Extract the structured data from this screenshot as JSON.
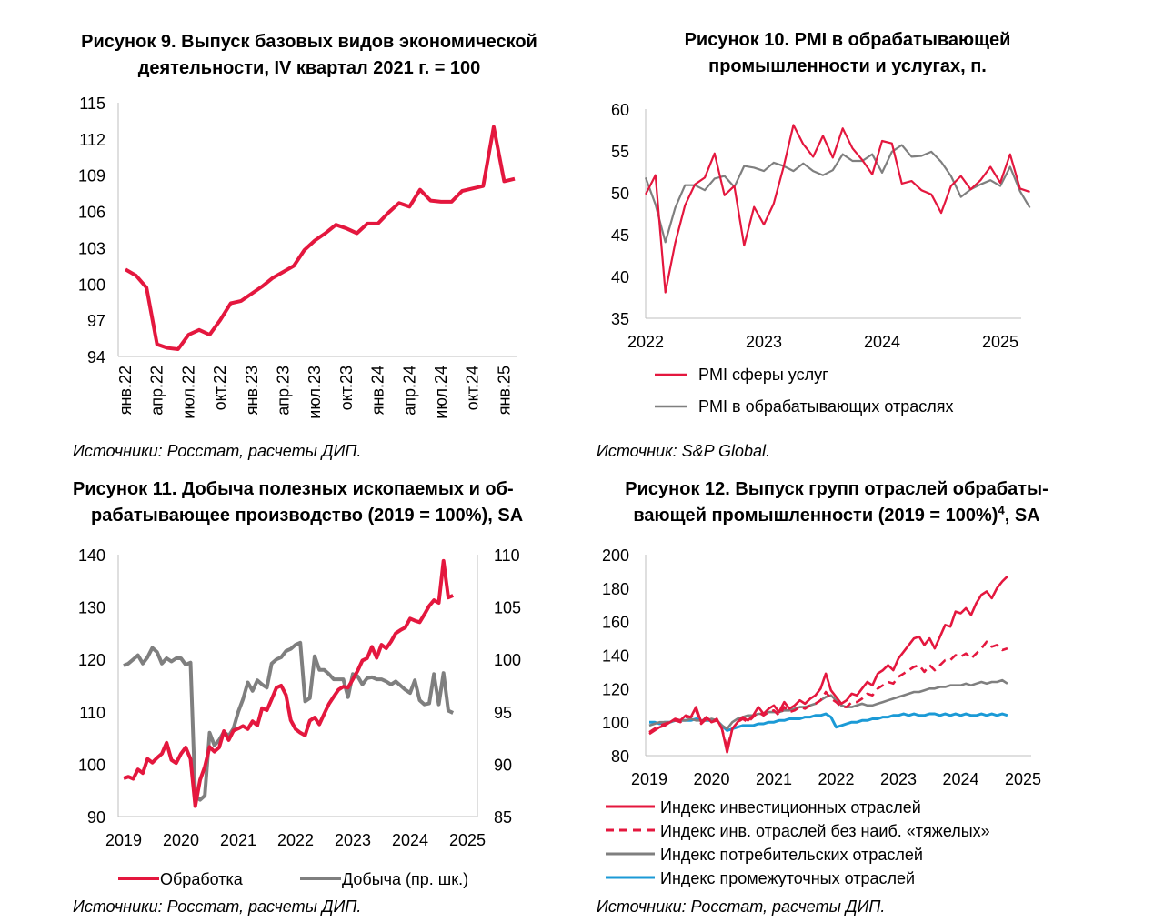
{
  "colors": {
    "red": "#e4173e",
    "gray": "#7f7f7f",
    "blue": "#1b9ad6",
    "axis": "#bfbfbf"
  },
  "chart_data": [
    {
      "id": "fig9",
      "type": "line",
      "title_lines": [
        "Рисунок 9. Выпуск базовых видов экономической",
        "деятельности, IV квартал 2021 г. = 100"
      ],
      "source": "Источники: Росстат, расчеты ДИП.",
      "ylim": [
        94,
        115
      ],
      "yticks": [
        94,
        97,
        100,
        103,
        106,
        109,
        112,
        115
      ],
      "xticks": [
        "янв.22",
        "апр.22",
        "июл.22",
        "окт.22",
        "янв.23",
        "апр.23",
        "июл.23",
        "окт.23",
        "янв.24",
        "апр.24",
        "июл.24",
        "окт.24",
        "янв.25"
      ],
      "series": [
        {
          "color": "red",
          "values": [
            101.2,
            100.7,
            99.7,
            95.0,
            94.7,
            94.6,
            95.8,
            96.2,
            95.8,
            97.0,
            98.4,
            98.6,
            99.2,
            99.8,
            100.5,
            101.0,
            101.5,
            102.8,
            103.6,
            104.2,
            104.9,
            104.6,
            104.2,
            105.0,
            105.0,
            105.9,
            106.7,
            106.4,
            107.8,
            106.9,
            106.8,
            106.8,
            107.7,
            107.9,
            108.1,
            113.0,
            108.5,
            108.7
          ]
        }
      ]
    },
    {
      "id": "fig10",
      "type": "line",
      "title_lines": [
        "Рисунок 10. PMI в обрабатывающей",
        "промышленности и услугах, п."
      ],
      "source": "Источник: S&P Global.",
      "ylim": [
        35,
        60
      ],
      "yticks": [
        35,
        40,
        45,
        50,
        55,
        60
      ],
      "x_start": 2022.0,
      "x_step": 0.08333,
      "xticks": [
        2022,
        2023,
        2024,
        2025
      ],
      "series": [
        {
          "name": "PMI сферы услуг",
          "color": "red",
          "values": [
            49.8,
            52.1,
            38.1,
            44.0,
            48.5,
            51.0,
            51.8,
            54.7,
            49.7,
            50.8,
            43.7,
            48.3,
            46.2,
            48.7,
            53.1,
            58.1,
            55.8,
            54.3,
            56.8,
            54.2,
            57.7,
            55.3,
            53.9,
            52.2,
            56.2,
            55.9,
            51.1,
            51.4,
            50.3,
            49.8,
            47.6,
            50.8,
            52.0,
            50.4,
            51.5,
            53.1,
            51.2,
            54.6,
            50.5,
            50.1
          ]
        },
        {
          "name": "PMI в обрабатывающих отраслях",
          "color": "gray",
          "values": [
            51.8,
            48.6,
            44.1,
            48.2,
            50.9,
            50.9,
            50.3,
            51.7,
            52.0,
            50.7,
            53.2,
            53.0,
            52.6,
            53.6,
            53.2,
            52.6,
            53.5,
            52.6,
            52.1,
            52.7,
            54.6,
            53.8,
            53.8,
            54.6,
            52.4,
            54.9,
            55.7,
            54.3,
            54.4,
            54.9,
            53.7,
            52.0,
            49.5,
            50.4,
            51.0,
            51.5,
            50.8,
            53.1,
            50.2,
            48.2
          ]
        }
      ]
    },
    {
      "id": "fig11",
      "type": "line",
      "title_lines": [
        "Рисунок 11. Добыча полезных ископаемых и об-",
        "рабатывающее производство (2019 = 100%), SA"
      ],
      "source": "Источники: Росстат, расчеты ДИП.",
      "ylim": [
        90,
        140
      ],
      "yticks": [
        90,
        100,
        110,
        120,
        130,
        140
      ],
      "y2lim": [
        85,
        110
      ],
      "y2ticks": [
        85,
        90,
        95,
        100,
        105,
        110
      ],
      "x_start": 2019.0,
      "x_step": 0.08333,
      "xticks": [
        2019,
        2020,
        2021,
        2022,
        2023,
        2024,
        2025
      ],
      "series": [
        {
          "name": "Обработка",
          "color": "red",
          "axis": "left",
          "values": [
            97.3,
            97.6,
            97.2,
            99.0,
            98.3,
            101.0,
            100.3,
            101.2,
            102.0,
            104.1,
            100.8,
            100.2,
            102.0,
            103.2,
            101.0,
            92.0,
            97.0,
            99.5,
            103.3,
            102.4,
            103.2,
            106.3,
            104.6,
            106.4,
            106.8,
            107.3,
            106.7,
            108.2,
            107.4,
            110.7,
            110.3,
            112.4,
            114.6,
            115.0,
            113.2,
            108.4,
            106.7,
            106.0,
            105.5,
            108.3,
            108.9,
            107.6,
            109.6,
            111.5,
            112.9,
            114.2,
            114.8,
            114.6,
            116.2,
            117.8,
            119.8,
            120.2,
            122.4,
            120.3,
            122.8,
            122.1,
            123.4,
            125.0,
            125.6,
            126.1,
            127.8,
            127.4,
            127.1,
            128.6,
            130.2,
            131.3,
            130.8,
            138.8,
            131.8,
            132.2
          ]
        },
        {
          "name": "Добыча (пр. шк.)",
          "color": "gray",
          "axis": "right",
          "values": [
            99.4,
            99.6,
            100.0,
            100.4,
            99.6,
            100.2,
            101.1,
            100.7,
            99.6,
            100.1,
            99.8,
            100.1,
            100.1,
            99.5,
            99.7,
            87.0,
            86.6,
            87.0,
            93.0,
            91.8,
            92.3,
            93.1,
            92.7,
            93.4,
            95.0,
            96.2,
            97.8,
            97.0,
            98.0,
            97.6,
            97.3,
            99.6,
            100.0,
            100.2,
            100.8,
            101.0,
            101.4,
            101.6,
            96.0,
            96.3,
            100.3,
            99.0,
            99.0,
            98.6,
            98.1,
            98.1,
            98.1,
            96.4,
            98.6,
            98.4,
            97.6,
            98.2,
            98.3,
            98.1,
            98.1,
            97.9,
            97.6,
            97.9,
            97.5,
            97.1,
            96.8,
            98.0,
            96.1,
            95.7,
            95.8,
            98.6,
            95.7,
            98.7,
            95.1,
            94.9
          ]
        }
      ],
      "legend": [
        "Обработка",
        "Добыча (пр. шк.)"
      ]
    },
    {
      "id": "fig12",
      "type": "line",
      "title_lines": [
        "Рисунок 12. Выпуск групп отраслей обрабаты-",
        "вающей промышленности (2019 = 100%)"
      ],
      "title_sup": "4",
      "title_tail": ", SA",
      "source": "Источники: Росстат, расчеты ДИП.",
      "ylim": [
        80,
        200
      ],
      "yticks": [
        80,
        100,
        120,
        140,
        160,
        180,
        200
      ],
      "x_start": 2019.0,
      "x_step": 0.08333,
      "xticks": [
        2019,
        2020,
        2021,
        2022,
        2023,
        2024,
        2025
      ],
      "series": [
        {
          "name": "Индекс инвестиционных отраслей",
          "color": "red",
          "dash": false,
          "values": [
            93.0,
            95.0,
            97.0,
            98.0,
            100.0,
            102.0,
            101.0,
            104.0,
            103.0,
            109.0,
            100.0,
            103.0,
            100.0,
            102.0,
            96.0,
            82.0,
            96.0,
            100.0,
            103.0,
            101.0,
            104.0,
            109.0,
            105.0,
            108.0,
            110.0,
            106.0,
            112.0,
            108.0,
            110.0,
            113.0,
            111.0,
            114.0,
            116.0,
            120.0,
            129.0,
            119.0,
            115.0,
            111.0,
            113.0,
            117.0,
            116.0,
            120.0,
            124.0,
            122.0,
            129.0,
            131.0,
            134.0,
            131.0,
            138.0,
            142.0,
            146.0,
            150.0,
            151.0,
            146.0,
            150.0,
            144.0,
            151.0,
            158.0,
            157.0,
            166.0,
            165.0,
            168.0,
            164.0,
            171.0,
            176.0,
            178.0,
            174.0,
            180.0,
            184.0,
            187.0
          ]
        },
        {
          "name": "Индекс инв. отраслей без наиб. «тяжелых»",
          "color": "red",
          "dash": true,
          "values": [
            94.0,
            96.0,
            98.0,
            99.0,
            100.0,
            101.0,
            100.0,
            103.0,
            103.0,
            107.0,
            99.0,
            102.0,
            100.0,
            101.0,
            96.0,
            84.0,
            96.0,
            100.0,
            102.0,
            100.0,
            103.0,
            106.0,
            104.0,
            106.0,
            107.0,
            104.0,
            109.0,
            106.0,
            107.0,
            109.0,
            108.0,
            110.0,
            111.0,
            113.0,
            118.0,
            114.0,
            112.0,
            109.0,
            109.0,
            112.0,
            112.0,
            114.0,
            117.0,
            116.0,
            120.0,
            122.0,
            124.0,
            123.0,
            127.0,
            129.0,
            131.0,
            133.0,
            134.0,
            130.0,
            134.0,
            131.0,
            134.0,
            137.0,
            137.0,
            140.0,
            139.0,
            141.0,
            138.0,
            141.0,
            144.0,
            148.0,
            145.0,
            146.0,
            143.0,
            144.0
          ]
        },
        {
          "name": "Индекс потребительских отраслей",
          "color": "gray",
          "dash": false,
          "values": [
            98.0,
            99.0,
            100.0,
            100.0,
            100.0,
            101.0,
            101.0,
            101.0,
            102.0,
            101.0,
            101.0,
            101.0,
            102.0,
            101.0,
            98.0,
            96.0,
            100.0,
            102.0,
            103.0,
            104.0,
            104.0,
            105.0,
            105.0,
            106.0,
            106.0,
            106.0,
            107.0,
            107.0,
            108.0,
            109.0,
            109.0,
            110.0,
            111.0,
            113.0,
            115.0,
            116.0,
            113.0,
            110.0,
            109.0,
            109.0,
            110.0,
            111.0,
            110.0,
            110.0,
            111.0,
            112.0,
            113.0,
            114.0,
            115.0,
            116.0,
            117.0,
            118.0,
            118.0,
            119.0,
            120.0,
            120.0,
            121.0,
            121.0,
            122.0,
            122.0,
            122.0,
            123.0,
            122.0,
            123.0,
            124.0,
            123.0,
            124.0,
            124.0,
            125.0,
            123.0
          ]
        },
        {
          "name": "Индекс промежуточных отраслей",
          "color": "blue",
          "dash": false,
          "values": [
            100.0,
            100.0,
            99.0,
            100.0,
            100.0,
            101.0,
            101.0,
            101.0,
            101.0,
            102.0,
            101.0,
            101.0,
            101.0,
            101.0,
            98.0,
            95.0,
            96.0,
            97.0,
            98.0,
            98.0,
            98.0,
            99.0,
            99.0,
            100.0,
            100.0,
            101.0,
            101.0,
            102.0,
            102.0,
            102.0,
            103.0,
            103.0,
            104.0,
            104.0,
            105.0,
            103.0,
            97.0,
            98.0,
            99.0,
            100.0,
            100.0,
            101.0,
            101.0,
            102.0,
            102.0,
            103.0,
            103.0,
            104.0,
            104.0,
            105.0,
            104.0,
            105.0,
            104.0,
            104.0,
            105.0,
            105.0,
            104.0,
            105.0,
            104.0,
            105.0,
            104.0,
            105.0,
            104.0,
            104.0,
            105.0,
            104.0,
            105.0,
            104.0,
            105.0,
            104.0
          ]
        }
      ]
    }
  ]
}
